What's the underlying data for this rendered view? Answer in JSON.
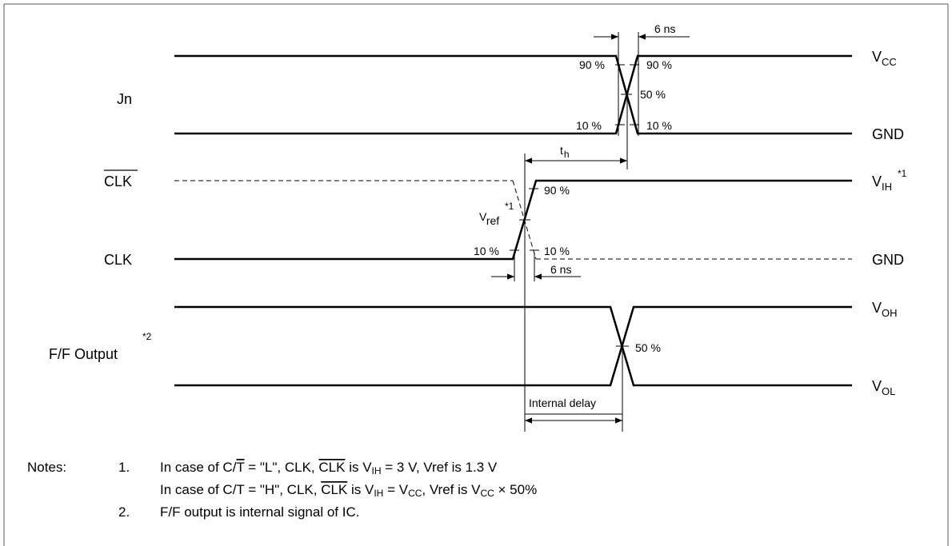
{
  "signals": {
    "jn": "Jn",
    "clk_bar": "CLK",
    "clk": "CLK",
    "ff_output": "F/F Output",
    "ff_output_mark": "*2"
  },
  "rails": {
    "vcc": {
      "main": "V",
      "sub": "CC"
    },
    "gnd_jn": "GND",
    "vih": {
      "main": "V",
      "sub": "IH",
      "mark": "*1"
    },
    "gnd_clk": "GND",
    "voh": {
      "main": "V",
      "sub": "OH"
    },
    "vol": {
      "main": "V",
      "sub": "OL"
    }
  },
  "annotations": {
    "jn_rise_time": "6 ns",
    "jn_90_left": "90 %",
    "jn_90_right": "90 %",
    "jn_50": "50 %",
    "jn_10_left": "10 %",
    "jn_10_right": "10 %",
    "th": {
      "main": "t",
      "sub": "h"
    },
    "clk_90": "90 %",
    "vref": {
      "main": "V",
      "sub": "ref",
      "mark": "*1"
    },
    "clk_10_left": "10 %",
    "clk_10_right": "10 %",
    "clk_rise_time": "6 ns",
    "ff_50": "50 %",
    "internal_delay": "Internal delay"
  },
  "notes": {
    "heading": "Notes:",
    "n1_num": "1.",
    "n1_line1": {
      "a": "In case of C/",
      "t_bar": "T",
      "b": " = \"L\", CLK, ",
      "clk_bar": "CLK",
      "c": " is V",
      "sub": "IH",
      "d": " = 3 V, Vref is 1.3 V"
    },
    "n1_line2": {
      "a": "In case of C/T = \"H\", CLK, ",
      "clk_bar": "CLK",
      "c": " is V",
      "sub1": "IH",
      "d": " = V",
      "sub2": "CC",
      "e": ", Vref is V",
      "sub3": "CC",
      "f": " × 50%"
    },
    "n2_num": "2.",
    "n2_text": "F/F output is internal signal of IC."
  }
}
